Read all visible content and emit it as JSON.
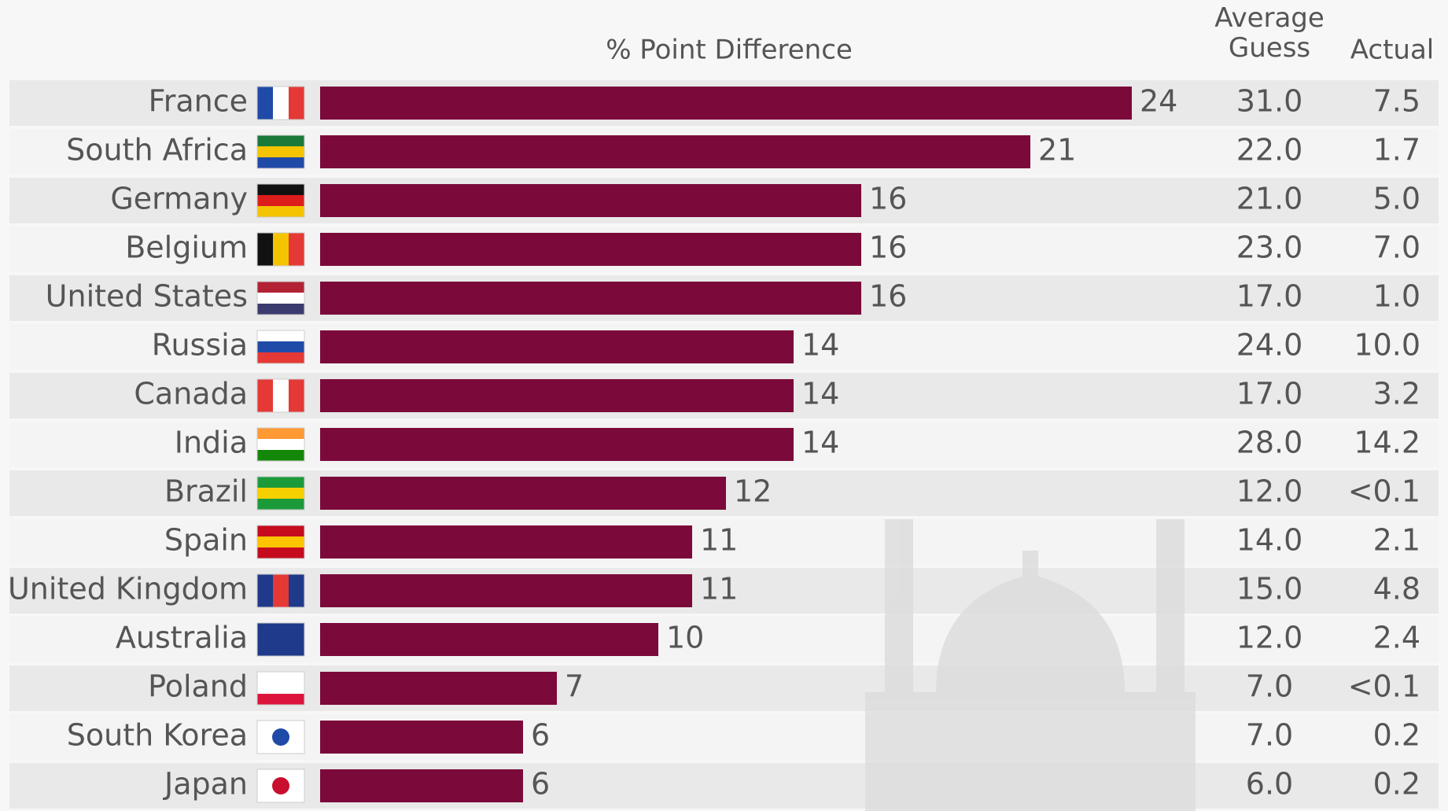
{
  "chart_data": {
    "type": "bar",
    "orientation": "horizontal",
    "title": "% Point Difference",
    "categories": [
      "France",
      "South Africa",
      "Germany",
      "Belgium",
      "United States",
      "Russia",
      "Canada",
      "India",
      "Brazil",
      "Spain",
      "United Kingdom",
      "Australia",
      "Poland",
      "South Korea",
      "Japan"
    ],
    "values": [
      24,
      21,
      16,
      16,
      16,
      14,
      14,
      14,
      12,
      11,
      11,
      10,
      7,
      6,
      6
    ],
    "color": "#7b0a3a",
    "table_columns": [
      {
        "header": "Average Guess",
        "values": [
          "31.0",
          "22.0",
          "21.0",
          "23.0",
          "17.0",
          "24.0",
          "17.0",
          "28.0",
          "12.0",
          "14.0",
          "15.0",
          "12.0",
          "7.0",
          "7.0",
          "6.0"
        ]
      },
      {
        "header": "Actual",
        "values": [
          "7.5",
          "1.7",
          "5.0",
          "7.0",
          "1.0",
          "10.0",
          "3.2",
          "14.2",
          "<0.1",
          "2.1",
          "4.8",
          "2.4",
          "<0.1",
          "0.2",
          "0.2"
        ]
      }
    ]
  }
}
